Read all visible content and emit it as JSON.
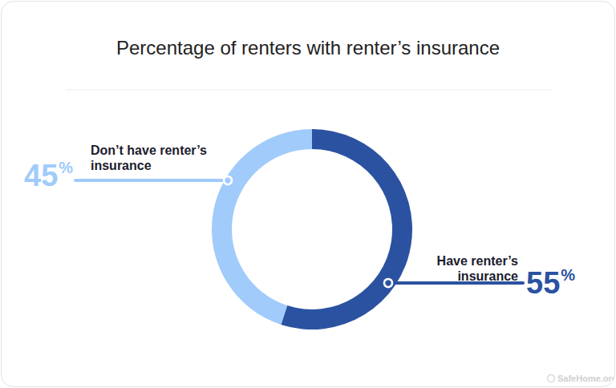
{
  "chart_data": {
    "type": "donut",
    "title": "Percentage of renters with renter’s insurance",
    "categories": [
      "Have renter’s insurance",
      "Don’t have renter’s insurance"
    ],
    "values": [
      55,
      45
    ],
    "value_labels": [
      "55%",
      "45%"
    ],
    "colors": [
      "#2b52a1",
      "#a0cbfb"
    ],
    "data_labels": true,
    "source": "SafeHome.org"
  }
}
